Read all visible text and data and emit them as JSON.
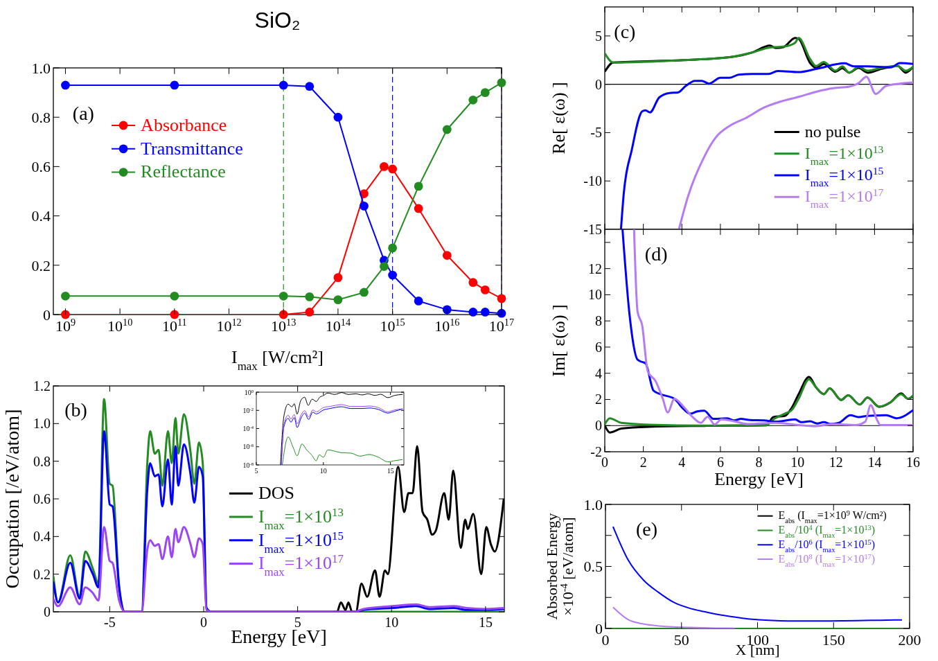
{
  "chart_data": [
    {
      "type": "line",
      "title": "SiO₂",
      "xlabel": "I$_{max}$ [W/cm²]",
      "annotations": [
        "(a)"
      ],
      "log": "x",
      "marker": "circle",
      "legend": "top left",
      "x": [
        1000000000.0,
        100000000000.0,
        10000000000000.0,
        30000000000000.0,
        100000000000000.0,
        300000000000000.0,
        700000000000000.0,
        1000000000000000.0,
        3000000000000000.0,
        1e+16,
        3e+16,
        5e+16,
        1e+17
      ],
      "series": [
        {
          "name": "Absorbance",
          "color": "#ff0000",
          "values": [
            0,
            0,
            0,
            0.01,
            0.15,
            0.49,
            0.6,
            0.59,
            0.43,
            0.24,
            0.13,
            0.1,
            0.065
          ]
        },
        {
          "name": "Transmittance",
          "color": "#0000ff",
          "values": [
            0.93,
            0.93,
            0.93,
            0.925,
            0.8,
            0.44,
            0.22,
            0.16,
            0.055,
            0.02,
            0.01,
            0.01,
            0.005
          ]
        },
        {
          "name": "Reflectance",
          "color": "#228b22",
          "values": [
            0.075,
            0.075,
            0.075,
            0.072,
            0.06,
            0.09,
            0.195,
            0.27,
            0.52,
            0.75,
            0.87,
            0.9,
            0.94
          ]
        }
      ],
      "xlim": [
        600000000.0,
        1e+17
      ],
      "ylim": [
        0,
        1
      ],
      "xticks": [
        {
          "value": 1000000000.0,
          "label": "10$^{9}$"
        },
        {
          "value": 10000000000.0,
          "label": "10$^{10}$"
        },
        {
          "value": 100000000000.0,
          "label": "10$^{11}$"
        },
        {
          "value": 1000000000000.0,
          "label": "10$^{12}$"
        },
        {
          "value": 10000000000000.0,
          "label": "10$^{13}$"
        },
        {
          "value": 100000000000000.0,
          "label": "10$^{14}$"
        },
        {
          "value": 1000000000000000.0,
          "label": "10$^{15}$"
        },
        {
          "value": 1e+16,
          "label": "10$^{16}$"
        },
        {
          "value": 1e+17,
          "label": "10$^{17}$"
        }
      ],
      "yticks": [
        0,
        0.2,
        0.4,
        0.6,
        0.8,
        {
          "value": 1,
          "label": "1.0"
        }
      ],
      "ref_lines": [
        {
          "axis": "x",
          "value": 10000000000000.0,
          "color": "#228b22",
          "line_style": "dashed"
        },
        {
          "axis": "x",
          "value": 1000000000000000.0,
          "color": "#0000ff",
          "line_style": "dashed"
        },
        {
          "axis": "x",
          "value": 1e+17,
          "color": "#9b45f5",
          "line_style": "dashed"
        }
      ]
    },
    {
      "type": "line",
      "xlabel": "Energy [eV]",
      "ylabel": "Occupation [/eV/atom]",
      "annotations": [
        "(b)"
      ],
      "legend": "center",
      "x": [
        -8,
        -7.75,
        -7.1,
        -6.6,
        -6.3,
        -5.9,
        -5.6,
        -5.3,
        -5.0,
        -4.85,
        -4.5,
        -4.2,
        -3.3,
        -3.0,
        -2.85,
        -2.6,
        -2.4,
        -2.2,
        -1.9,
        -1.7,
        -1.5,
        -1.35,
        -1.05,
        -0.7,
        -0.5,
        -0.25,
        -0.05,
        0.15,
        0.4,
        8,
        8.5,
        10,
        11.3,
        12,
        13.3,
        14,
        15,
        16
      ],
      "series": [
        {
          "name": "DOS",
          "color": "#000000",
          "x": [
            6.9,
            7.1,
            7.3,
            7.55,
            7.7,
            7.9,
            8.1,
            8.4,
            8.7,
            9.12,
            9.36,
            9.65,
            9.8,
            10.35,
            10.67,
            10.9,
            11.12,
            11.36,
            11.65,
            11.9,
            12.16,
            12.35,
            12.8,
            13.04,
            13.28,
            13.68,
            13.92,
            14.05,
            14.35,
            14.77,
            15.04,
            15.28,
            15.49,
            15.97
          ],
          "values": [
            0,
            0,
            0.05,
            0.01,
            0.05,
            0,
            0,
            0.15,
            0.08,
            0.22,
            0.08,
            0.22,
            0.2,
            0.77,
            0.53,
            0.63,
            0.63,
            0.88,
            0.53,
            0.49,
            0.41,
            0.43,
            0.63,
            0.49,
            0.75,
            0.34,
            0.49,
            0.44,
            0.52,
            0.2,
            0.45,
            0.36,
            0.32,
            0.6
          ]
        },
        {
          "name": "I$_{max}$=1×10$^{13}$",
          "color": "#228b22",
          "values": [
            0.19,
            0.05,
            0.3,
            0.08,
            0.32,
            0.23,
            0.15,
            1.13,
            0.68,
            0.67,
            0.14,
            0,
            0,
            0.79,
            0.96,
            0.84,
            0.86,
            0.67,
            0.96,
            0.79,
            1.03,
            0.84,
            1.05,
            0.85,
            0.68,
            0.9,
            0.79,
            0.02,
            0,
            0,
            0,
            0,
            0,
            0,
            0,
            0,
            0,
            0
          ]
        },
        {
          "name": "I$_{max}$=1×10$^{15}$",
          "color": "#0000ff",
          "values": [
            0.16,
            0.05,
            0.26,
            0.07,
            0.27,
            0.2,
            0.13,
            0.96,
            0.57,
            0.56,
            0.13,
            0,
            0,
            0.65,
            0.79,
            0.72,
            0.73,
            0.56,
            0.81,
            0.57,
            0.88,
            0.67,
            0.89,
            0.73,
            0.58,
            0.77,
            0.72,
            0.02,
            0,
            0,
            0.01,
            0.02,
            0.03,
            0.015,
            0.02,
            0.01,
            0.01,
            0.015
          ]
        },
        {
          "name": "I$_{max}$=1×10$^{17}$",
          "color": "#9b45f5",
          "values": [
            0.07,
            0.03,
            0.13,
            0.04,
            0.13,
            0.1,
            0.06,
            0.45,
            0.27,
            0.26,
            0.06,
            0,
            0,
            0.33,
            0.38,
            0.35,
            0.36,
            0.28,
            0.4,
            0.29,
            0.44,
            0.37,
            0.45,
            0.36,
            0.29,
            0.39,
            0.36,
            0.01,
            0,
            0,
            0.015,
            0.03,
            0.04,
            0.025,
            0.03,
            0.02,
            0.015,
            0.02
          ]
        }
      ],
      "xlim": [
        -8,
        16
      ],
      "ylim": [
        0,
        1.2
      ],
      "xticks": [
        -5,
        0,
        5,
        10,
        15
      ],
      "yticks": [
        0,
        0.2,
        0.4,
        0.6,
        0.8,
        {
          "value": 1,
          "label": "1.0"
        },
        1.2
      ]
    },
    {
      "type": "line",
      "log": "y",
      "series": [
        {
          "color": "#000000",
          "x": [
            6.8,
            7.06,
            7.37,
            7.66,
            7.83,
            8.04,
            8.3,
            8.6,
            8.87,
            9.16,
            9.47,
            9.73,
            10,
            10.33,
            10.84,
            11.36,
            11.87,
            12.39,
            12.9,
            13.33,
            13.85,
            14.28,
            14.8,
            15.31,
            15.91
          ],
          "values": [
            1e-08,
            0.0025,
            0.048,
            0.024,
            0.054,
            0.0039,
            0.11,
            0.28,
            0.035,
            0.17,
            0.095,
            0.28,
            0.42,
            0.8,
            0.56,
            0.9,
            0.56,
            0.66,
            0.5,
            0.66,
            0.44,
            0.59,
            0.25,
            0.44,
            0.56
          ]
        },
        {
          "color": "#228b22",
          "x": [
            6.94,
            7.37,
            7.75,
            8.04,
            8.4,
            8.78,
            9.12,
            9.47,
            9.69,
            10,
            10.33,
            10.93,
            11.36,
            12.04,
            12.73,
            13.42,
            14.1,
            14.8,
            15.31,
            15.91
          ],
          "values": [
            1e-08,
            1.2e-05,
            8e-07,
            1e-07,
            2e-06,
            4e-07,
            1.3e-07,
            2.9e-08,
            1.3e-07,
            7e-08,
            4.5e-07,
            3e-07,
            2.2e-07,
            2e-07,
            9.3e-08,
            1.4e-07,
            7e-08,
            2.2e-08,
            2.9e-08,
            3.9e-08
          ]
        },
        {
          "color": "#0000ff",
          "x": [
            6.86,
            7.06,
            7.37,
            7.58,
            7.83,
            8.04,
            8.35,
            8.6,
            8.9,
            9.21,
            9.47,
            10,
            10.5,
            11.36,
            12.04,
            12.9,
            13.42,
            14.1,
            14.8,
            15.31,
            15.91
          ],
          "values": [
            1e-08,
            0.00016,
            0.0013,
            0.0005,
            0.0016,
            0.00013,
            0.0016,
            0.005,
            0.001,
            0.0063,
            0.004,
            0.011,
            0.016,
            0.025,
            0.016,
            0.016,
            0.018,
            0.0126,
            0.005,
            0.008,
            0.014
          ]
        },
        {
          "color": "#9b45f5",
          "x": [
            6.86,
            7.06,
            7.37,
            7.58,
            7.83,
            8.04,
            8.35,
            8.6,
            8.9,
            9.21,
            9.47,
            10,
            10.5,
            11.36,
            12.04,
            12.9,
            13.42,
            14.1,
            14.8,
            15.31,
            15.91
          ],
          "values": [
            1e-08,
            0.00025,
            0.0029,
            0.0011,
            0.0035,
            0.00033,
            0.0035,
            0.0093,
            0.0019,
            0.011,
            0.0069,
            0.02,
            0.027,
            0.043,
            0.027,
            0.027,
            0.03,
            0.02,
            0.0069,
            0.011,
            0.015
          ]
        }
      ],
      "xlim": [
        5,
        16
      ],
      "ylim": [
        1e-08,
        1
      ],
      "xticks": [
        5,
        10,
        15
      ],
      "yticks": [
        {
          "value": 1,
          "label": "10$^{0}$"
        },
        {
          "value": 0.01,
          "label": "10$^{-2}$"
        },
        {
          "value": 0.0001,
          "label": "10$^{-4}$"
        },
        {
          "value": 1e-06,
          "label": "10$^{-6}$"
        },
        {
          "value": 1e-08,
          "label": "10$^{-8}$"
        }
      ]
    },
    {
      "type": "line",
      "ylabel": "Re[ ε(ω) ]",
      "annotations": [
        "(c)"
      ],
      "legend": "bottom right",
      "tick_labels": "y",
      "series": [
        {
          "name": "no pulse",
          "color": "#000000",
          "x": [
            0,
            0.44,
            4.09,
            6.48,
            7.67,
            8.57,
            8.87,
            9.28,
            9.88,
            10.06,
            10.66,
            10.96,
            11.37,
            11.97,
            12.33,
            12.69,
            13.17,
            13.64,
            14.36,
            15.2,
            15.62,
            16
          ],
          "values": [
            1.3,
            2.25,
            2.5,
            2.8,
            3.3,
            4.0,
            3.75,
            3.85,
            4.8,
            4.7,
            2.2,
            1.7,
            2.1,
            1.3,
            1.65,
            1.2,
            1.7,
            1.2,
            1.6,
            1.9,
            1.2,
            1.8
          ]
        },
        {
          "name": "I$_{max}$=1×10$^{13}$",
          "color": "#228b22",
          "x": [
            0,
            0.44,
            4.09,
            6.48,
            7.67,
            8.57,
            8.87,
            9.28,
            9.88,
            10.06,
            10.66,
            10.96,
            11.37,
            11.97,
            12.33,
            12.69,
            13.17,
            13.64,
            14.36,
            15.2,
            15.62,
            16
          ],
          "values": [
            3.2,
            2.25,
            2.5,
            2.8,
            3.3,
            3.8,
            3.85,
            3.9,
            4.3,
            4.8,
            2.6,
            1.9,
            2.3,
            1.4,
            1.85,
            1.2,
            1.8,
            1.4,
            1.7,
            1.9,
            1.4,
            1.8
          ]
        },
        {
          "name": "I$_{max}$=1×10$^{15}$",
          "color": "#0000ff",
          "x": [
            0.84,
            0.98,
            1.4,
            1.94,
            2.11,
            2.35,
            2.83,
            3.37,
            3.79,
            4.2,
            4.68,
            5.04,
            5.4,
            6.0,
            6.48,
            6.95,
            7.67,
            8.5,
            8.98,
            10.06,
            11.0,
            12.45,
            12.93,
            13.64,
            14.84,
            15.32,
            16
          ],
          "values": [
            -15,
            -11.4,
            -6.8,
            -2.8,
            -2.7,
            -2.9,
            -1.35,
            -0.9,
            -0.85,
            -0.17,
            0.36,
            0.36,
            0.07,
            0.67,
            0.67,
            1.0,
            1.07,
            1.07,
            1.38,
            1.26,
            1.6,
            2.17,
            1.86,
            1.86,
            1.74,
            2.2,
            2.1
          ]
        },
        {
          "name": "I$_{max}$=1×10$^{17}$",
          "color": "#b57cf2",
          "x": [
            3.85,
            4.32,
            5.16,
            5.76,
            6.48,
            7.31,
            8.27,
            9.1,
            10.06,
            11.0,
            11.85,
            12.69,
            13.17,
            13.58,
            14.06,
            14.6,
            15.32,
            16
          ],
          "values": [
            -15,
            -11.6,
            -7.5,
            -5.5,
            -4.3,
            -3.5,
            -2.4,
            -1.8,
            -1.3,
            -0.76,
            -0.4,
            -0.24,
            0.12,
            0.79,
            -1.0,
            -0.17,
            0.07,
            0.19
          ]
        }
      ],
      "xlim": [
        0,
        16
      ],
      "ylim": [
        -15,
        8
      ],
      "xticks": [
        0,
        2,
        4,
        6,
        8,
        10,
        12,
        14,
        16
      ],
      "yticks": [
        -15,
        -10,
        -5,
        0,
        5
      ],
      "ref_lines": [
        {
          "axis": "y",
          "value": 0,
          "color": "#000000",
          "line_style": "solid"
        }
      ]
    },
    {
      "type": "line",
      "xlabel": "Energy [eV]",
      "ylabel": "Im[ ε(ω) ]",
      "annotations": [
        "(d)"
      ],
      "series": [
        {
          "color": "#000000",
          "x": [
            0,
            0.26,
            0.86,
            2.3,
            5.3,
            8.4,
            8.75,
            9.34,
            9.7,
            10.06,
            10.6,
            10.96,
            11.37,
            11.67,
            12.27,
            12.63,
            13.23,
            13.64,
            14.24,
            14.84,
            15.38,
            15.74,
            16
          ],
          "values": [
            0,
            -0.53,
            -0.23,
            -0.09,
            -0.02,
            0.03,
            0.65,
            0.74,
            1.35,
            2.4,
            3.72,
            2.93,
            2.4,
            2.84,
            1.96,
            2.32,
            1.61,
            2.14,
            1.44,
            1.79,
            2.46,
            2.05,
            2.26
          ]
        },
        {
          "color": "#228b22",
          "x": [
            0,
            0.26,
            0.86,
            2.3,
            5.3,
            8.4,
            8.75,
            9.34,
            9.7,
            10.06,
            10.6,
            10.96,
            11.37,
            11.67,
            12.27,
            12.63,
            13.23,
            13.64,
            14.24,
            14.84,
            15.38,
            15.74,
            16
          ],
          "values": [
            0.1,
            0.56,
            0.21,
            0.07,
            0,
            0.03,
            0.47,
            0.91,
            1.18,
            2.05,
            3.54,
            2.93,
            2.4,
            2.84,
            1.96,
            2.32,
            1.61,
            2.14,
            1.44,
            1.79,
            2.4,
            2.05,
            2.3
          ]
        },
        {
          "color": "#0000ff",
          "x": [
            0.92,
            1.28,
            1.7,
            1.94,
            2.11,
            2.53,
            2.89,
            3.61,
            4.09,
            4.44,
            4.8,
            5.16,
            5.64,
            6.36,
            6.71,
            7.07,
            7.55,
            8.27,
            8.87,
            9.88,
            10.18,
            10.66,
            11.02,
            11.37,
            11.73,
            12.15,
            12.75,
            13.17,
            13.64,
            14.6,
            15.14,
            16
          ],
          "values": [
            15,
            8.54,
            5.04,
            4.86,
            4.77,
            2.67,
            2.4,
            2.05,
            1.26,
            0.91,
            1.09,
            1.14,
            0.51,
            0.56,
            0.39,
            0.51,
            0.42,
            0.39,
            0.3,
            0.47,
            0.26,
            0.33,
            0.16,
            0.26,
            0.12,
            0.21,
            0.79,
            0.65,
            0.74,
            0.79,
            0.56,
            1.18
          ]
        },
        {
          "color": "#b57cf2",
          "x": [
            1.52,
            1.7,
            1.94,
            2.23,
            2.65,
            3.01,
            3.27,
            3.61,
            4.09,
            4.56,
            4.98,
            5.34,
            5.7,
            6.06,
            6.71,
            7.43,
            8.87,
            10.06,
            10.9,
            11.85,
            13.05,
            13.52,
            13.8,
            14.12,
            14.3,
            16
          ],
          "values": [
            15,
            8.72,
            7.67,
            4.16,
            3.37,
            2.05,
            1.0,
            2.05,
            1.44,
            0.65,
            0.21,
            0.68,
            0.09,
            0.47,
            0.33,
            0.12,
            0.21,
            0.04,
            -0.05,
            0.12,
            0.04,
            0.3,
            1.56,
            0.47,
            0.04,
            0.04
          ]
        }
      ],
      "xlim": [
        0,
        16
      ],
      "ylim": [
        -2,
        15
      ],
      "xticks": [
        0,
        2,
        4,
        6,
        8,
        10,
        12,
        14,
        16
      ],
      "yticks": [
        -2,
        0,
        2,
        4,
        6,
        8,
        10,
        12,
        {
          "value": 14,
          "label": null
        }
      ],
      "ref_lines": [
        {
          "axis": "y",
          "value": 0,
          "color": "#000000",
          "line_style": "solid"
        }
      ]
    },
    {
      "type": "line",
      "xlabel": "X [nm]",
      "ylabel": "Absorbed Energy\n×10$^{-4}$ [eV/atom]",
      "annotations": [
        "(e)"
      ],
      "legend": "top right",
      "x": [
        5,
        15,
        25,
        35,
        45,
        55,
        65,
        75,
        85,
        95,
        105,
        115,
        125,
        135,
        145,
        155,
        165,
        175,
        185,
        195
      ],
      "series": [
        {
          "name": "E$_{abs}$ (I$_{max}$=1×10$^{9}$ W/cm²)",
          "color": "#000000",
          "values": [
            null,
            null,
            null,
            null,
            null,
            null,
            null,
            null,
            null,
            null,
            null,
            null,
            null,
            null,
            null,
            null,
            null,
            null,
            null,
            null
          ]
        },
        {
          "name": "E$_{abs}$/10$^{4}$ (I$_{max}$=1×10$^{13}$)",
          "color": "#228b22",
          "values": [
            0,
            0,
            0,
            0,
            0,
            0,
            0,
            0,
            0,
            0,
            0,
            0,
            0,
            0,
            0,
            0,
            0,
            0,
            0,
            0
          ]
        },
        {
          "name": "E$_{abs}$/10$^{6}$ (I$_{max}$=1×10$^{15}$)",
          "color": "#0000ff",
          "values": [
            0.82,
            0.55,
            0.39,
            0.29,
            0.21,
            0.164,
            0.135,
            0.11,
            0.092,
            0.075,
            0.067,
            0.062,
            0.06,
            0.06,
            0.06,
            0.061,
            0.063,
            0.065,
            0.067,
            0.069
          ]
        },
        {
          "name": "E$_{abs}$/10$^{8}$ (I$_{max}$=1×10$^{17}$)",
          "color": "#b57cf2",
          "values": [
            0.17,
            0.07,
            0.036,
            0.02,
            0.012,
            0.008,
            0.005,
            0.003,
            0.002,
            null,
            null,
            null,
            null,
            null,
            null,
            null,
            null,
            null,
            null,
            null
          ]
        }
      ],
      "xlim": [
        0,
        200
      ],
      "ylim": [
        0,
        1
      ],
      "xticks": [
        0,
        50,
        100,
        150,
        200
      ],
      "yticks": [
        0,
        {
          "value": 0.25,
          "label": null
        },
        0.5,
        {
          "value": 0.75,
          "label": null
        },
        {
          "value": 1,
          "label": "1.0"
        }
      ]
    }
  ]
}
